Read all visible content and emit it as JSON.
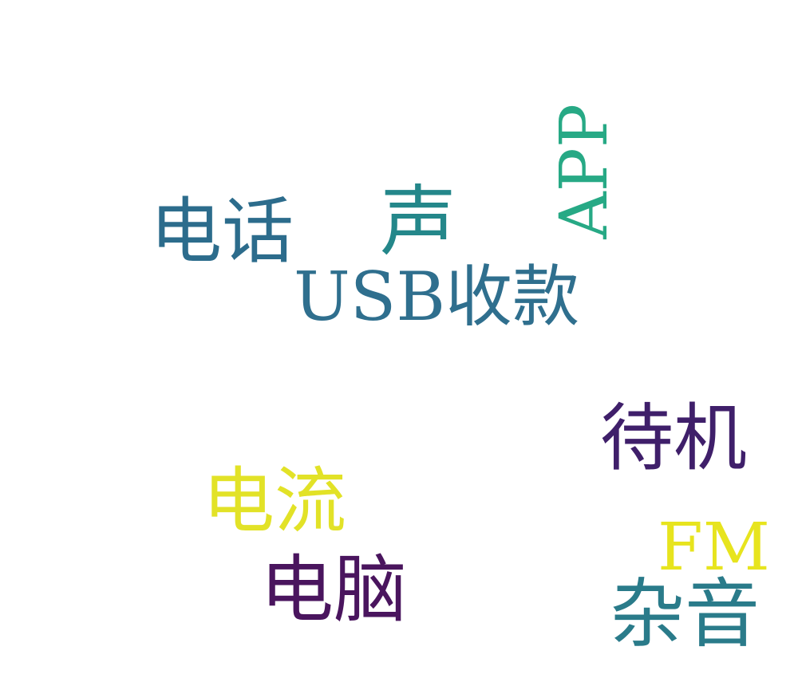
{
  "words": {
    "usb": {
      "text": "USB收款",
      "color": "#2f6f8e"
    },
    "daiji": {
      "text": "待机",
      "color": "#3f1f6a"
    },
    "zayin": {
      "text": "杂音",
      "color": "#2a7b8a"
    },
    "diannao": {
      "text": "电脑",
      "color": "#4a155e"
    },
    "dianhua": {
      "text": "电话",
      "color": "#2c6c8c"
    },
    "sheng": {
      "text": "声",
      "color": "#24878a"
    },
    "app": {
      "text": "APP",
      "color": "#27a985"
    },
    "dianliu": {
      "text": "电流",
      "color": "#e2e227"
    },
    "fm": {
      "text": "FM",
      "color": "#e7e41e"
    }
  }
}
